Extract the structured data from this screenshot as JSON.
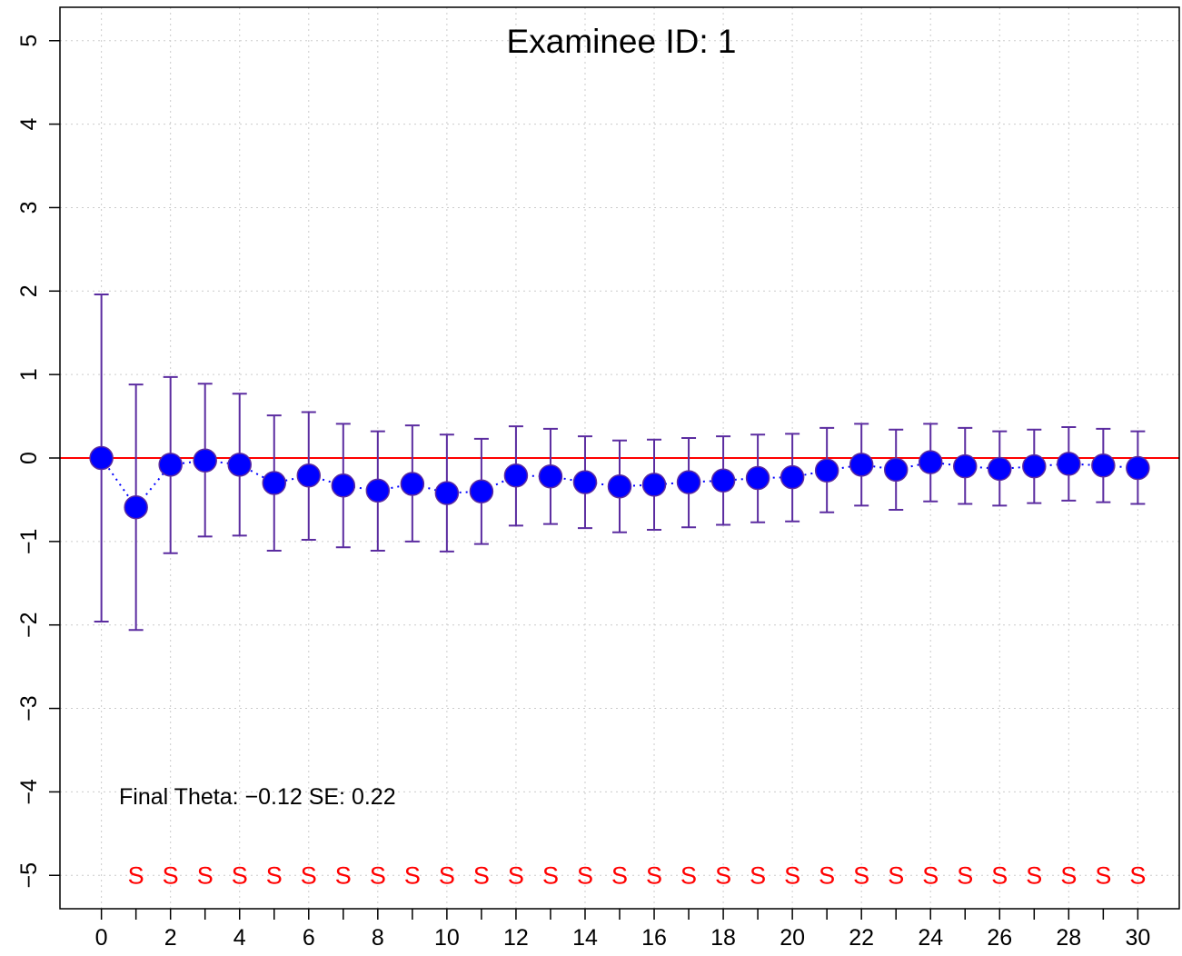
{
  "chart_data": {
    "type": "scatter",
    "title": "Examinee ID: 1",
    "annotation": "Final Theta:  −0.12  SE:  0.22",
    "x": [
      0,
      1,
      2,
      3,
      4,
      5,
      6,
      7,
      8,
      9,
      10,
      11,
      12,
      13,
      14,
      15,
      16,
      17,
      18,
      19,
      20,
      21,
      22,
      23,
      24,
      25,
      26,
      27,
      28,
      29,
      30
    ],
    "theta": [
      0.0,
      -0.59,
      -0.08,
      -0.03,
      -0.08,
      -0.3,
      -0.21,
      -0.33,
      -0.39,
      -0.31,
      -0.42,
      -0.4,
      -0.21,
      -0.22,
      -0.29,
      -0.34,
      -0.32,
      -0.29,
      -0.27,
      -0.24,
      -0.23,
      -0.15,
      -0.08,
      -0.14,
      -0.05,
      -0.1,
      -0.13,
      -0.1,
      -0.07,
      -0.09,
      -0.12
    ],
    "upper": [
      1.96,
      0.88,
      0.97,
      0.89,
      0.77,
      0.51,
      0.55,
      0.41,
      0.32,
      0.39,
      0.28,
      0.23,
      0.38,
      0.35,
      0.26,
      0.21,
      0.22,
      0.24,
      0.26,
      0.28,
      0.29,
      0.36,
      0.41,
      0.34,
      0.41,
      0.36,
      0.32,
      0.34,
      0.37,
      0.35,
      0.32
    ],
    "lower": [
      -1.96,
      -2.06,
      -1.14,
      -0.94,
      -0.93,
      -1.11,
      -0.98,
      -1.07,
      -1.11,
      -1.0,
      -1.12,
      -1.03,
      -0.81,
      -0.79,
      -0.84,
      -0.89,
      -0.86,
      -0.83,
      -0.8,
      -0.77,
      -0.76,
      -0.65,
      -0.57,
      -0.62,
      -0.52,
      -0.55,
      -0.57,
      -0.54,
      -0.51,
      -0.53,
      -0.55
    ],
    "response_markers": [
      "S",
      "S",
      "S",
      "S",
      "S",
      "S",
      "S",
      "S",
      "S",
      "S",
      "S",
      "S",
      "S",
      "S",
      "S",
      "S",
      "S",
      "S",
      "S",
      "S",
      "S",
      "S",
      "S",
      "S",
      "S",
      "S",
      "S",
      "S",
      "S",
      "S"
    ],
    "marker_y": -5,
    "reference_line_y": 0,
    "xlim": [
      -1.2,
      31.2
    ],
    "ylim": [
      -5.4,
      5.4
    ],
    "x_ticks": [
      0,
      2,
      4,
      6,
      8,
      10,
      12,
      14,
      16,
      18,
      20,
      22,
      24,
      26,
      28,
      30
    ],
    "x_minor_ticks": [
      0,
      1,
      2,
      3,
      4,
      5,
      6,
      7,
      8,
      9,
      10,
      11,
      12,
      13,
      14,
      15,
      16,
      17,
      18,
      19,
      20,
      21,
      22,
      23,
      24,
      25,
      26,
      27,
      28,
      29,
      30
    ],
    "y_ticks": [
      -5,
      -4,
      -3,
      -2,
      -1,
      0,
      1,
      2,
      3,
      4,
      5
    ],
    "y_tick_labels": [
      "−5",
      "−4",
      "−3",
      "−2",
      "−1",
      "0",
      "1",
      "2",
      "3",
      "4",
      "5"
    ],
    "grid": true,
    "colors": {
      "point_fill": "#0000ff",
      "point_stroke": "#5b2ca0",
      "error_bar": "#5b2ca0",
      "connect_line": "#0000ff",
      "reference_line": "#ff0000",
      "marker_text": "#ff0000",
      "grid": "#cccccc"
    }
  }
}
